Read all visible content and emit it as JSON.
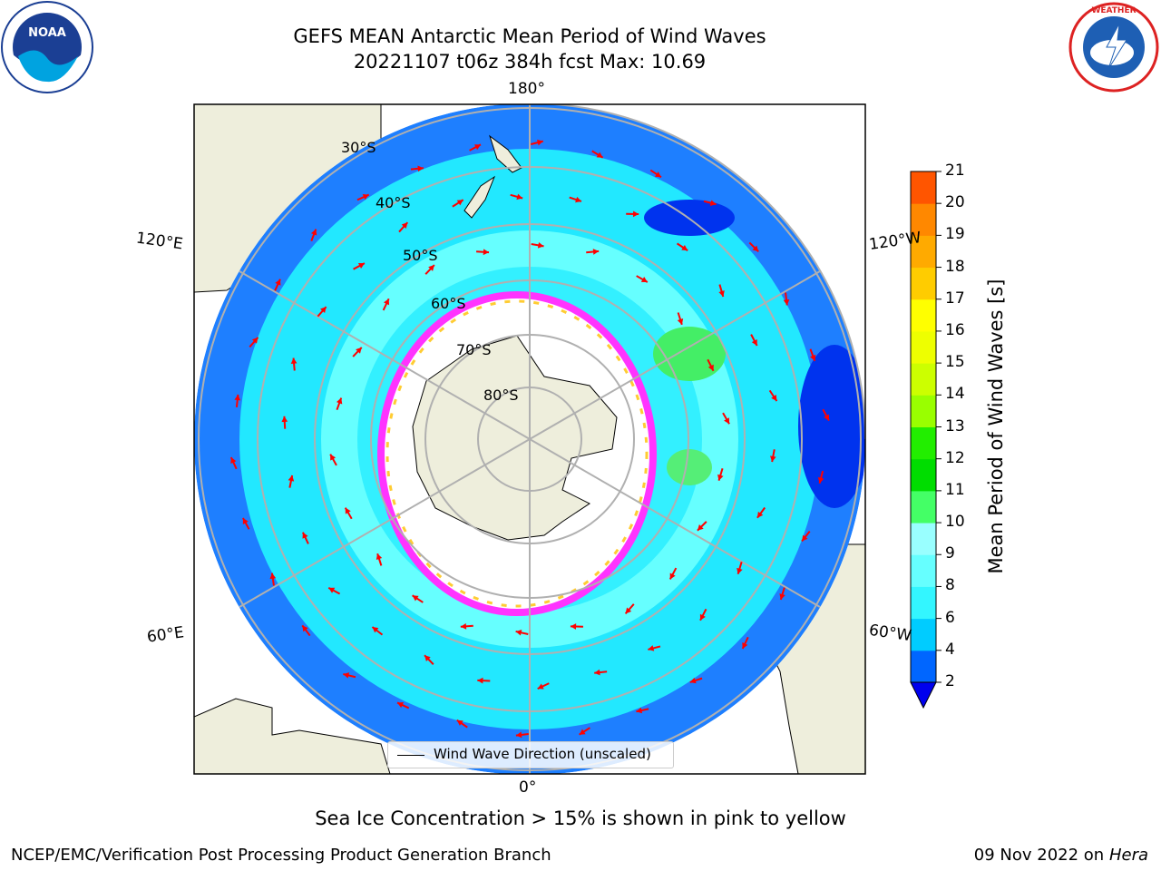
{
  "title": {
    "line1": "GEFS MEAN Antarctic Mean Period of Wind Waves",
    "line2": "20221107 t06z 384h fcst   Max: 10.69"
  },
  "logos": {
    "left": "NOAA",
    "right": "NATIONAL WEATHER SERVICE"
  },
  "map": {
    "projection": "south-polar-stereographic",
    "lon_labels": [
      "180°",
      "120°E",
      "120°W",
      "60°E",
      "60°W",
      "0°"
    ],
    "lat_labels": [
      "30°S",
      "40°S",
      "50°S",
      "60°S",
      "70°S",
      "80°S"
    ],
    "legend": "Wind Wave Direction (unscaled)",
    "colors": {
      "land": "#eeeedc",
      "ice_edge": "#ff33ff",
      "arrow": "#ff0000",
      "grid": "#b0b0b0"
    }
  },
  "colorbar": {
    "label": "Mean Period of Wind Waves [s]",
    "ticks": [
      "2",
      "4",
      "6",
      "8",
      "9",
      "10",
      "11",
      "12",
      "13",
      "14",
      "15",
      "16",
      "17",
      "18",
      "19",
      "20",
      "21"
    ],
    "colors": [
      "#0066ff",
      "#00ccff",
      "#33f6ff",
      "#66ffff",
      "#99ffff",
      "#44ff66",
      "#00dd00",
      "#22ee00",
      "#99ff00",
      "#ccff00",
      "#eeff00",
      "#ffff00",
      "#ffcc00",
      "#ffaa00",
      "#ff8800",
      "#ff5500",
      "#ff2200",
      "#ff0000"
    ],
    "under_color": "#0000ee"
  },
  "caption": "Sea Ice Concentration > 15% is shown in pink to yellow",
  "footer": {
    "left": "NCEP/EMC/Verification Post Processing Product Generation Branch",
    "right_date": "09 Nov 2022 on",
    "right_host": "Hera"
  }
}
